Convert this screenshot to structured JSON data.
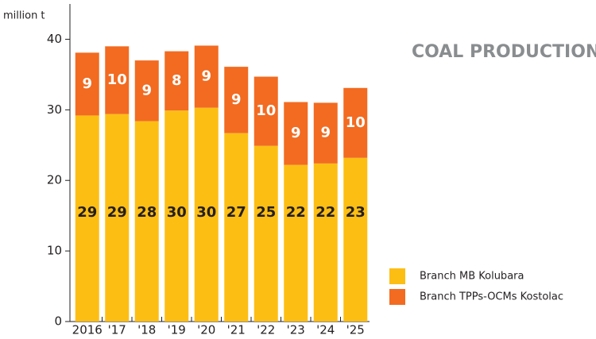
{
  "chart_data": {
    "type": "stacked_bar",
    "title": "COAL PRODUCTION",
    "y_label": "million t",
    "categories": [
      "2016",
      "'17",
      "'18",
      "'19",
      "'20",
      "'21",
      "'22",
      "'23",
      "'24",
      "'25"
    ],
    "series": [
      {
        "name": "Branch MB Kolubara",
        "color": "#fdbe14",
        "values": [
          29.2,
          29.4,
          28.4,
          29.9,
          30.3,
          26.7,
          24.9,
          22.2,
          22.4,
          23.2
        ],
        "value_labels": [
          "29",
          "29",
          "28",
          "30",
          "30",
          "27",
          "25",
          "22",
          "22",
          "23"
        ]
      },
      {
        "name": "Branch TPPs-OCMs Kostolac",
        "color": "#f26b21",
        "values": [
          8.9,
          9.6,
          8.6,
          8.4,
          8.8,
          9.4,
          9.8,
          8.9,
          8.6,
          9.9
        ],
        "value_labels": [
          "9",
          "10",
          "9",
          "8",
          "9",
          "9",
          "10",
          "9",
          "9",
          "10"
        ]
      }
    ],
    "ylim": [
      0,
      45
    ],
    "yticks": [
      0,
      10,
      20,
      30,
      40
    ]
  }
}
